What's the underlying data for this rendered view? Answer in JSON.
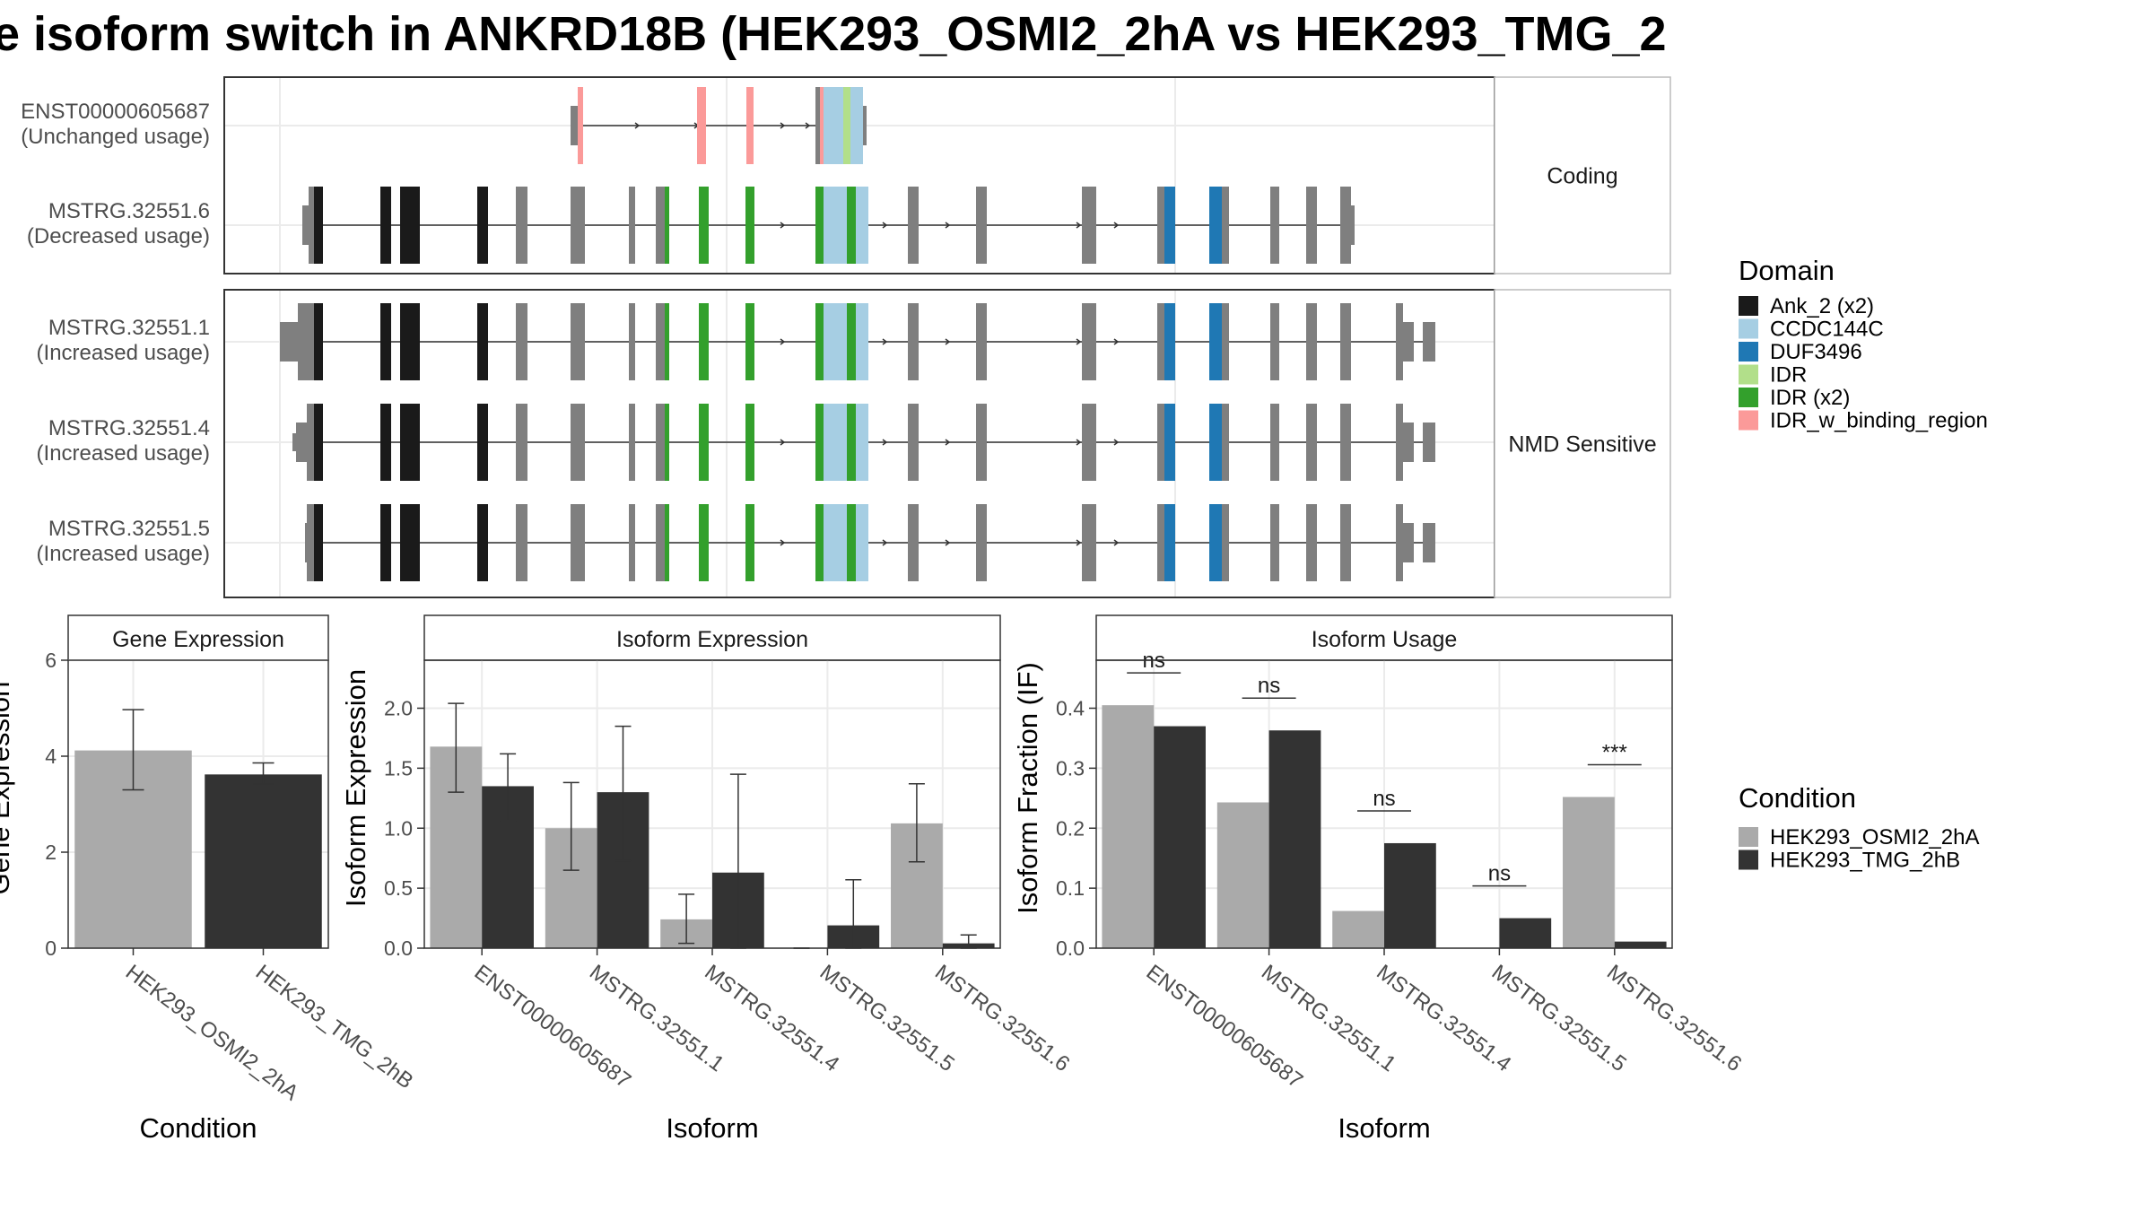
{
  "title": "e isoform switch in ANKRD18B (HEK293_OSMI2_2hA vs HEK293_TMG_2",
  "colors": {
    "Ank_2 (x2)": "#1a1a1a",
    "CCDC144C": "#a6cee3",
    "DUF3496": "#1f78b4",
    "IDR": "#b2df8a",
    "IDR (x2)": "#33a02c",
    "IDR_w_binding_region": "#fb9a99",
    "exon": "#7f7f7f",
    "HEK293_OSMI2_2hA": "#aaaaaa",
    "HEK293_TMG_2hB": "#333333"
  },
  "structure": {
    "facets": [
      {
        "label": "Coding",
        "tracks": [
          {
            "name": "ENST00000605687",
            "usage": "(Unchanged usage)"
          },
          {
            "name": "MSTRG.32551.6",
            "usage": "(Decreased usage)"
          }
        ]
      },
      {
        "label": "NMD Sensitive",
        "tracks": [
          {
            "name": "MSTRG.32551.1",
            "usage": "(Increased usage)"
          },
          {
            "name": "MSTRG.32551.4",
            "usage": "(Increased usage)"
          },
          {
            "name": "MSTRG.32551.5",
            "usage": "(Increased usage)"
          }
        ]
      }
    ]
  },
  "domain_legend": {
    "title": "Domain",
    "items": [
      "Ank_2 (x2)",
      "CCDC144C",
      "DUF3496",
      "IDR",
      "IDR (x2)",
      "IDR_w_binding_region"
    ]
  },
  "condition_legend": {
    "title": "Condition",
    "items": [
      "HEK293_OSMI2_2hA",
      "HEK293_TMG_2hB"
    ]
  },
  "chart_data": [
    {
      "type": "bar",
      "title": "Gene Expression",
      "xlabel": "Condition",
      "ylabel": "Gene Expression",
      "ylim": [
        0,
        6
      ],
      "yticks": [
        0,
        2,
        4,
        6
      ],
      "categories": [
        "HEK293_OSMI2_2hA",
        "HEK293_TMG_2hB"
      ],
      "values": [
        4.12,
        3.62
      ],
      "errors": [
        [
          3.3,
          4.97
        ],
        [
          3.42,
          3.86
        ]
      ]
    },
    {
      "type": "bar",
      "title": "Isoform Expression",
      "xlabel": "Isoform",
      "ylabel": "Isoform Expression",
      "ylim": [
        0,
        2.4
      ],
      "yticks": [
        "0.0",
        "0.5",
        "1.0",
        "1.5",
        "2.0"
      ],
      "categories": [
        "ENST00000605687",
        "MSTRG.32551.1",
        "MSTRG.32551.4",
        "MSTRG.32551.5",
        "MSTRG.32551.6"
      ],
      "series": [
        {
          "name": "HEK293_OSMI2_2hA",
          "values": [
            1.68,
            1.0,
            0.24,
            0.0,
            1.04
          ],
          "errors": [
            [
              1.3,
              2.04
            ],
            [
              0.65,
              1.38
            ],
            [
              0.04,
              0.45
            ],
            [
              0.0,
              0.0
            ],
            [
              0.72,
              1.37
            ]
          ]
        },
        {
          "name": "HEK293_TMG_2hB",
          "values": [
            1.35,
            1.3,
            0.63,
            0.19,
            0.04
          ],
          "errors": [
            [
              1.06,
              1.62
            ],
            [
              0.73,
              1.85
            ],
            [
              0.0,
              1.45
            ],
            [
              0.0,
              0.57
            ],
            [
              0.0,
              0.11
            ]
          ]
        }
      ]
    },
    {
      "type": "bar",
      "title": "Isoform Usage",
      "xlabel": "Isoform",
      "ylabel": "Isoform Fraction (IF)",
      "ylim": [
        0,
        0.48
      ],
      "yticks": [
        "0.0",
        "0.1",
        "0.2",
        "0.3",
        "0.4"
      ],
      "categories": [
        "ENST00000605687",
        "MSTRG.32551.1",
        "MSTRG.32551.4",
        "MSTRG.32551.5",
        "MSTRG.32551.6"
      ],
      "series": [
        {
          "name": "HEK293_OSMI2_2hA",
          "values": [
            0.405,
            0.243,
            0.062,
            0.0,
            0.252
          ]
        },
        {
          "name": "HEK293_TMG_2hB",
          "values": [
            0.37,
            0.363,
            0.175,
            0.05,
            0.011
          ]
        }
      ],
      "annotations": [
        "ns",
        "ns",
        "ns",
        "ns",
        "***"
      ]
    }
  ]
}
